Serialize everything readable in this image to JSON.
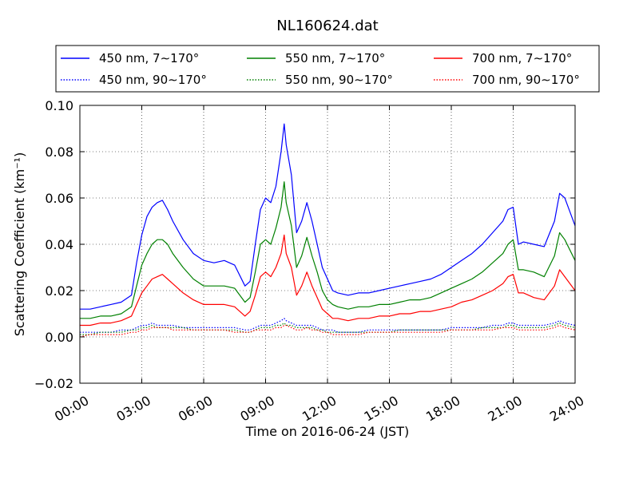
{
  "chart_data": {
    "type": "line",
    "title": "NL160624.dat",
    "xlabel": "Time on 2016-06-24 (JST)",
    "ylabel": "Scattering Coefficient (km⁻¹)",
    "xlim": [
      0,
      24
    ],
    "ylim": [
      -0.02,
      0.1
    ],
    "x_ticks": [
      0,
      3,
      6,
      9,
      12,
      15,
      18,
      21,
      24
    ],
    "x_tick_labels": [
      "00:00",
      "03:00",
      "06:00",
      "09:00",
      "12:00",
      "15:00",
      "18:00",
      "21:00",
      "24:00"
    ],
    "y_ticks": [
      -0.02,
      0.0,
      0.02,
      0.04,
      0.06,
      0.08,
      0.1
    ],
    "y_tick_labels": [
      "−0.02",
      "0.00",
      "0.02",
      "0.04",
      "0.06",
      "0.08",
      "0.10"
    ],
    "grid": true,
    "legend_position": "top",
    "x": [
      0,
      0.5,
      1,
      1.5,
      2,
      2.5,
      2.75,
      3,
      3.25,
      3.5,
      3.75,
      4,
      4.25,
      4.5,
      5,
      5.5,
      6,
      6.5,
      7,
      7.5,
      8,
      8.25,
      8.5,
      8.75,
      9,
      9.25,
      9.5,
      9.75,
      9.9,
      10,
      10.25,
      10.5,
      10.75,
      11,
      11.25,
      11.5,
      11.75,
      12,
      12.25,
      12.5,
      13,
      13.5,
      14,
      14.5,
      15,
      15.5,
      16,
      16.5,
      17,
      17.5,
      18,
      18.5,
      19,
      19.5,
      20,
      20.5,
      20.75,
      21,
      21.25,
      21.5,
      22,
      22.5,
      23,
      23.25,
      23.5,
      24
    ],
    "series": [
      {
        "name": "450 nm, 7∼170°",
        "color": "#0000ff",
        "style": "solid",
        "values": [
          0.012,
          0.012,
          0.013,
          0.014,
          0.015,
          0.018,
          0.032,
          0.044,
          0.052,
          0.056,
          0.058,
          0.059,
          0.055,
          0.05,
          0.042,
          0.036,
          0.033,
          0.032,
          0.033,
          0.031,
          0.022,
          0.024,
          0.04,
          0.055,
          0.06,
          0.058,
          0.065,
          0.08,
          0.092,
          0.083,
          0.07,
          0.045,
          0.05,
          0.058,
          0.05,
          0.04,
          0.03,
          0.025,
          0.02,
          0.019,
          0.018,
          0.019,
          0.019,
          0.02,
          0.021,
          0.022,
          0.023,
          0.024,
          0.025,
          0.027,
          0.03,
          0.033,
          0.036,
          0.04,
          0.045,
          0.05,
          0.055,
          0.056,
          0.04,
          0.041,
          0.04,
          0.039,
          0.05,
          0.062,
          0.06,
          0.048
        ]
      },
      {
        "name": "550 nm, 7∼170°",
        "color": "#008000",
        "style": "solid",
        "values": [
          0.008,
          0.008,
          0.009,
          0.009,
          0.01,
          0.013,
          0.022,
          0.031,
          0.036,
          0.04,
          0.042,
          0.042,
          0.04,
          0.036,
          0.03,
          0.025,
          0.022,
          0.022,
          0.022,
          0.021,
          0.015,
          0.017,
          0.028,
          0.04,
          0.042,
          0.04,
          0.047,
          0.056,
          0.067,
          0.058,
          0.048,
          0.03,
          0.035,
          0.043,
          0.035,
          0.028,
          0.02,
          0.016,
          0.014,
          0.013,
          0.012,
          0.013,
          0.013,
          0.014,
          0.014,
          0.015,
          0.016,
          0.016,
          0.017,
          0.019,
          0.021,
          0.023,
          0.025,
          0.028,
          0.032,
          0.036,
          0.04,
          0.042,
          0.029,
          0.029,
          0.028,
          0.026,
          0.035,
          0.045,
          0.042,
          0.033
        ]
      },
      {
        "name": "700 nm, 7∼170°",
        "color": "#ff0000",
        "style": "solid",
        "values": [
          0.005,
          0.005,
          0.006,
          0.006,
          0.007,
          0.009,
          0.014,
          0.019,
          0.022,
          0.025,
          0.026,
          0.027,
          0.025,
          0.023,
          0.019,
          0.016,
          0.014,
          0.014,
          0.014,
          0.013,
          0.009,
          0.011,
          0.018,
          0.026,
          0.028,
          0.026,
          0.03,
          0.036,
          0.044,
          0.036,
          0.03,
          0.018,
          0.022,
          0.028,
          0.022,
          0.017,
          0.012,
          0.01,
          0.008,
          0.008,
          0.007,
          0.008,
          0.008,
          0.009,
          0.009,
          0.01,
          0.01,
          0.011,
          0.011,
          0.012,
          0.013,
          0.015,
          0.016,
          0.018,
          0.02,
          0.023,
          0.026,
          0.027,
          0.019,
          0.019,
          0.017,
          0.016,
          0.022,
          0.029,
          0.026,
          0.02
        ]
      },
      {
        "name": "450 nm, 90∼170°",
        "color": "#0000ff",
        "style": "dotted",
        "values": [
          0.002,
          0.002,
          0.002,
          0.002,
          0.003,
          0.003,
          0.004,
          0.005,
          0.005,
          0.006,
          0.005,
          0.005,
          0.005,
          0.005,
          0.004,
          0.004,
          0.004,
          0.004,
          0.004,
          0.004,
          0.003,
          0.003,
          0.004,
          0.005,
          0.005,
          0.005,
          0.006,
          0.007,
          0.008,
          0.007,
          0.006,
          0.005,
          0.005,
          0.005,
          0.005,
          0.004,
          0.003,
          0.003,
          0.003,
          0.002,
          0.002,
          0.002,
          0.003,
          0.003,
          0.003,
          0.003,
          0.003,
          0.003,
          0.003,
          0.003,
          0.004,
          0.004,
          0.004,
          0.004,
          0.005,
          0.005,
          0.006,
          0.006,
          0.005,
          0.005,
          0.005,
          0.005,
          0.006,
          0.007,
          0.006,
          0.005
        ]
      },
      {
        "name": "550 nm, 90∼170°",
        "color": "#008000",
        "style": "dotted",
        "values": [
          0.001,
          0.001,
          0.002,
          0.002,
          0.002,
          0.003,
          0.003,
          0.004,
          0.004,
          0.005,
          0.004,
          0.004,
          0.004,
          0.004,
          0.004,
          0.003,
          0.003,
          0.003,
          0.003,
          0.003,
          0.002,
          0.002,
          0.003,
          0.004,
          0.004,
          0.004,
          0.005,
          0.005,
          0.006,
          0.005,
          0.005,
          0.004,
          0.004,
          0.004,
          0.004,
          0.003,
          0.003,
          0.002,
          0.002,
          0.002,
          0.002,
          0.002,
          0.002,
          0.002,
          0.002,
          0.003,
          0.003,
          0.003,
          0.003,
          0.003,
          0.003,
          0.003,
          0.003,
          0.004,
          0.004,
          0.004,
          0.005,
          0.005,
          0.004,
          0.004,
          0.004,
          0.004,
          0.005,
          0.006,
          0.005,
          0.004
        ]
      },
      {
        "name": "700 nm, 90∼170°",
        "color": "#ff0000",
        "style": "dotted",
        "values": [
          0.0,
          0.001,
          0.001,
          0.001,
          0.001,
          0.002,
          0.002,
          0.003,
          0.003,
          0.004,
          0.004,
          0.004,
          0.004,
          0.003,
          0.003,
          0.003,
          0.003,
          0.003,
          0.003,
          0.002,
          0.002,
          0.002,
          0.003,
          0.003,
          0.003,
          0.003,
          0.004,
          0.004,
          0.005,
          0.005,
          0.004,
          0.003,
          0.003,
          0.004,
          0.003,
          0.003,
          0.002,
          0.002,
          0.001,
          0.001,
          0.001,
          0.001,
          0.002,
          0.002,
          0.002,
          0.002,
          0.002,
          0.002,
          0.002,
          0.002,
          0.003,
          0.003,
          0.003,
          0.003,
          0.003,
          0.004,
          0.004,
          0.004,
          0.003,
          0.003,
          0.003,
          0.003,
          0.004,
          0.005,
          0.004,
          0.003
        ]
      }
    ],
    "legend_order": [
      0,
      1,
      2,
      3,
      4,
      5
    ]
  }
}
